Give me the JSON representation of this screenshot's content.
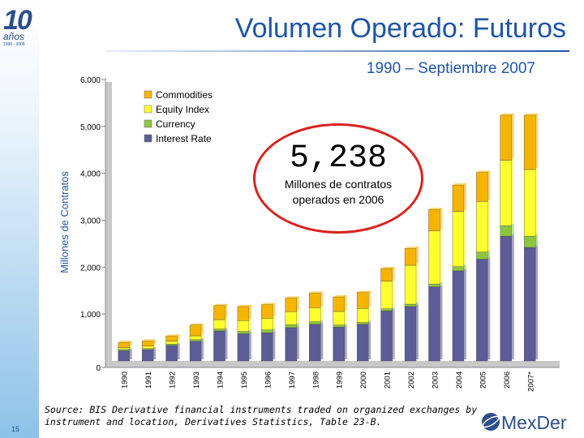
{
  "branding": {
    "logo_number": "10",
    "logo_word": "años",
    "logo_years": "1996 - 2006",
    "partner_name": "MexDer"
  },
  "slide": {
    "title": "Volumen Operado: Futuros",
    "subtitle": "1990 – Septiembre 2007",
    "page_number": "15"
  },
  "callout": {
    "number": "5,238",
    "text_line1": "Millones de contratos",
    "text_line2": "operados en 2006"
  },
  "source": "Source: BIS Derivative financial instruments traded on organized exchanges by instrument and location, Derivatives Statistics, Table 23-B.",
  "colors": {
    "commodities": "#f5b400",
    "equity_index": "#ffff2e",
    "currency": "#8cc63f",
    "interest_rate": "#5c5c96",
    "title": "#1f55a8",
    "callout_border": "#d9231f"
  },
  "chart_data": {
    "type": "bar",
    "stacked": true,
    "title": "",
    "xlabel": "",
    "ylabel": "Millones de Contratos",
    "ylim": [
      0,
      6000
    ],
    "yticks": [
      "0",
      "1,000",
      "2,000",
      "3,000",
      "4,000",
      "5,000",
      "6,000"
    ],
    "ytick_values": [
      0,
      1000,
      2000,
      3000,
      4000,
      5000,
      6000
    ],
    "legend_position": "top-left",
    "categories": [
      "1990",
      "1991",
      "1992",
      "1993",
      "1994",
      "1995",
      "1996",
      "1997",
      "1998",
      "1999",
      "2000",
      "2001",
      "2002",
      "2003",
      "2004",
      "2005",
      "2006",
      "2007*"
    ],
    "series": [
      {
        "name": "Interest Rate",
        "values": [
          220,
          240,
          330,
          420,
          640,
          580,
          600,
          710,
          780,
          720,
          780,
          1070,
          1160,
          1580,
          1920,
          2170,
          2660,
          2420
        ]
      },
      {
        "name": "Currency",
        "values": [
          25,
          25,
          30,
          35,
          40,
          50,
          60,
          60,
          55,
          45,
          40,
          40,
          50,
          60,
          90,
          150,
          220,
          240
        ]
      },
      {
        "name": "Equity Index",
        "values": [
          40,
          50,
          60,
          80,
          200,
          230,
          250,
          280,
          300,
          290,
          300,
          590,
          830,
          1130,
          1180,
          1080,
          1400,
          1420
        ]
      },
      {
        "name": "Commodities",
        "values": [
          110,
          110,
          110,
          230,
          300,
          300,
          290,
          290,
          310,
          310,
          340,
          270,
          360,
          460,
          560,
          620,
          960,
          1160
        ]
      }
    ]
  }
}
